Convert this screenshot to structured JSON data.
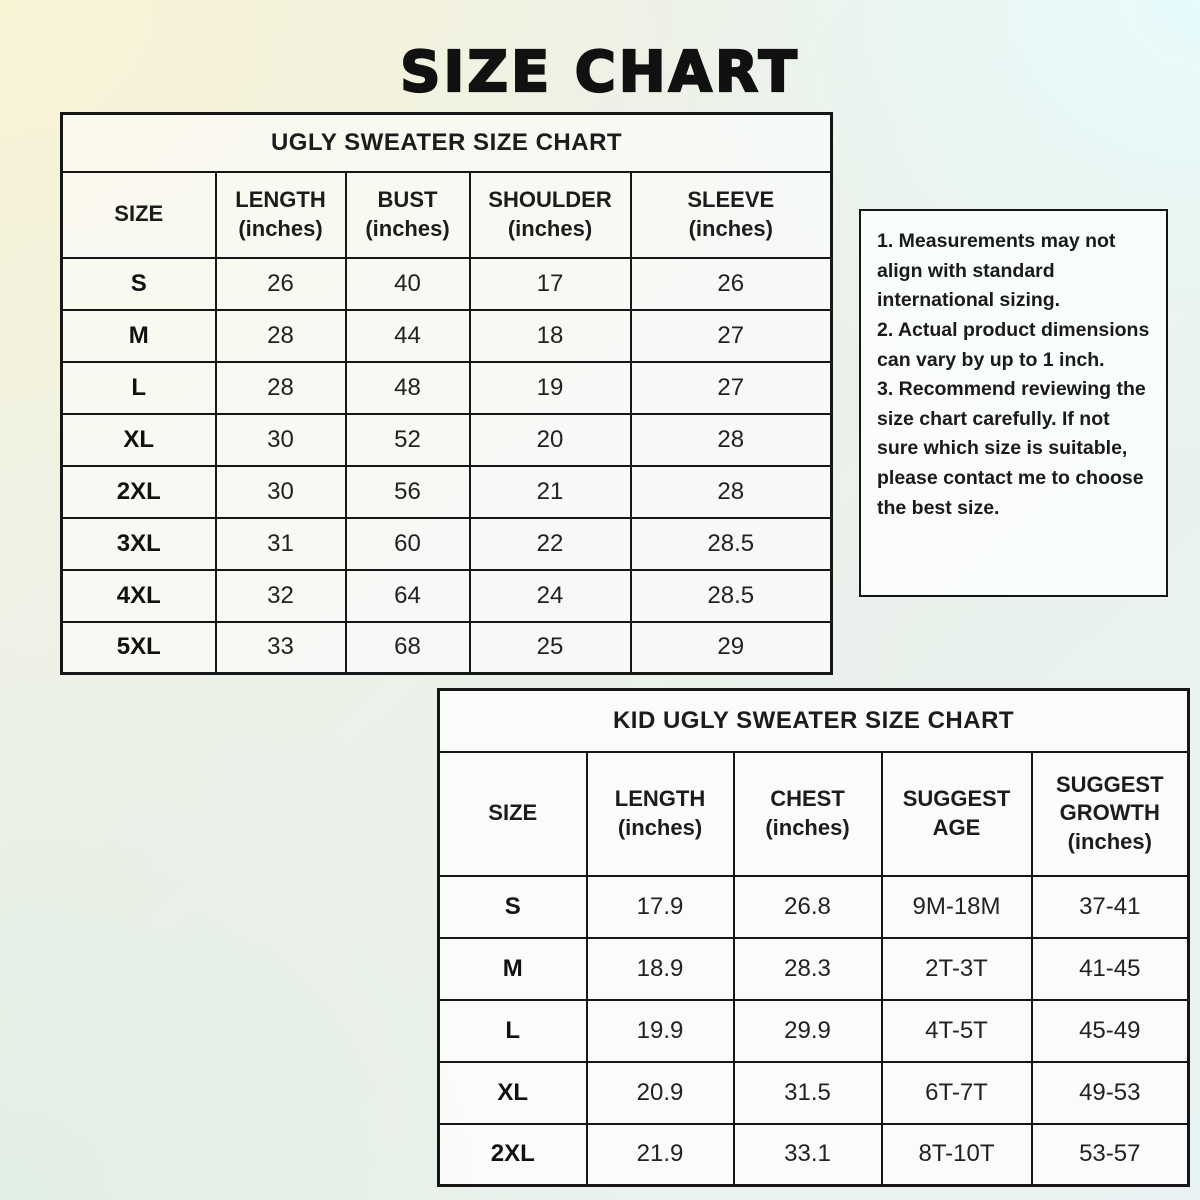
{
  "page_title": "SIZE CHART",
  "theme": {
    "bg_top_left": "#f9f3d6",
    "bg_top_right": "#e7fbfc",
    "bg_bottom_left": "#e2efe4",
    "bg_mid": "#edf2e9",
    "border_color": "#161616",
    "text_color": "#1c1c1c"
  },
  "chart_data": [
    {
      "type": "table",
      "name": "adult-size-table",
      "title": "UGLY SWEATER SIZE CHART",
      "columns": [
        "SIZE",
        "LENGTH\n(inches)",
        "BUST\n(inches)",
        "SHOULDER\n(inches)",
        "SLEEVE\n(inches)"
      ],
      "rows": [
        [
          "S",
          "26",
          "40",
          "17",
          "26"
        ],
        [
          "M",
          "28",
          "44",
          "18",
          "27"
        ],
        [
          "L",
          "28",
          "48",
          "19",
          "27"
        ],
        [
          "XL",
          "30",
          "52",
          "20",
          "28"
        ],
        [
          "2XL",
          "30",
          "56",
          "21",
          "28"
        ],
        [
          "3XL",
          "31",
          "60",
          "22",
          "28.5"
        ],
        [
          "4XL",
          "32",
          "64",
          "24",
          "28.5"
        ],
        [
          "5XL",
          "33",
          "68",
          "25",
          "29"
        ]
      ]
    },
    {
      "type": "table",
      "name": "kid-size-table",
      "title": "KID UGLY SWEATER SIZE CHART",
      "columns": [
        "SIZE",
        "LENGTH\n(inches)",
        "CHEST\n(inches)",
        "SUGGEST\nAGE",
        "SUGGEST\nGROWTH\n(inches)"
      ],
      "rows": [
        [
          "S",
          "17.9",
          "26.8",
          "9M-18M",
          "37-41"
        ],
        [
          "M",
          "18.9",
          "28.3",
          "2T-3T",
          "41-45"
        ],
        [
          "L",
          "19.9",
          "29.9",
          "4T-5T",
          "45-49"
        ],
        [
          "XL",
          "20.9",
          "31.5",
          "6T-7T",
          "49-53"
        ],
        [
          "2XL",
          "21.9",
          "33.1",
          "8T-10T",
          "53-57"
        ]
      ]
    }
  ],
  "notes": {
    "items": [
      "1. Measurements may not align with standard international sizing.",
      "2. Actual product dimensions can vary by up to 1 inch.",
      "3. Recommend reviewing the size chart carefully. If not sure which size is suitable, please contact me to choose the best size."
    ]
  }
}
